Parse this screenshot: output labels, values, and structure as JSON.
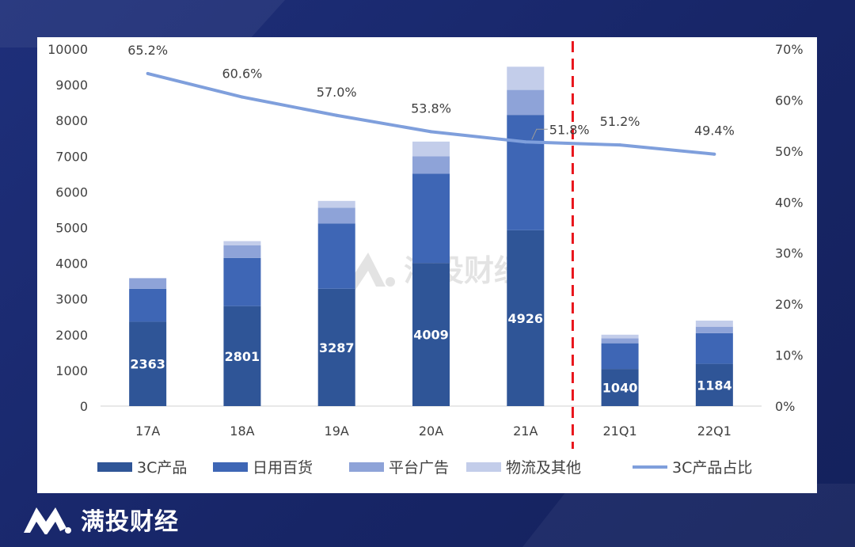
{
  "brand": {
    "name": "满投财经",
    "logo_icon": "m-logo-icon"
  },
  "watermark": {
    "text": "满投财经"
  },
  "chart_data": {
    "type": "bar",
    "stacked": true,
    "combo_line": true,
    "categories": [
      "17A",
      "18A",
      "19A",
      "20A",
      "21A",
      "21Q1",
      "22Q1"
    ],
    "series": [
      {
        "name": "3C产品",
        "type": "bar",
        "color": "#2f5597",
        "values": [
          2363,
          2801,
          3287,
          4009,
          4926,
          1040,
          1184
        ],
        "labels": [
          "2363",
          "2801",
          "3287",
          "4009",
          "4926",
          "1040",
          "1184"
        ]
      },
      {
        "name": "日用百货",
        "type": "bar",
        "color": "#3e66b5",
        "values": [
          920,
          1350,
          1830,
          2500,
          3230,
          720,
          860
        ]
      },
      {
        "name": "平台广告",
        "type": "bar",
        "color": "#8ea3d8",
        "values": [
          300,
          350,
          440,
          490,
          700,
          140,
          180
        ]
      },
      {
        "name": "物流及其他",
        "type": "bar",
        "color": "#c3cdea",
        "values": [
          0,
          120,
          190,
          410,
          650,
          100,
          170
        ]
      },
      {
        "name": "3C产品占比",
        "type": "line",
        "axis": "right",
        "color": "#7f9fdc",
        "values": [
          65.2,
          60.6,
          57.0,
          53.8,
          51.8,
          51.2,
          49.4
        ],
        "labels": [
          "65.2%",
          "60.6%",
          "57.0%",
          "53.8%",
          "51.8%",
          "51.2%",
          "49.4%"
        ]
      }
    ],
    "y_left": {
      "min": 0,
      "max": 10000,
      "ticks": [
        "0",
        "1000",
        "2000",
        "3000",
        "4000",
        "5000",
        "6000",
        "7000",
        "8000",
        "9000",
        "10000"
      ]
    },
    "y_right": {
      "min": 0,
      "max": 70,
      "ticks": [
        "0%",
        "10%",
        "20%",
        "30%",
        "40%",
        "50%",
        "60%",
        "70%"
      ]
    },
    "divider": {
      "after_category": "21A",
      "color": "#e8141b",
      "style": "dashed"
    },
    "legend_position": "bottom",
    "grid": false
  }
}
